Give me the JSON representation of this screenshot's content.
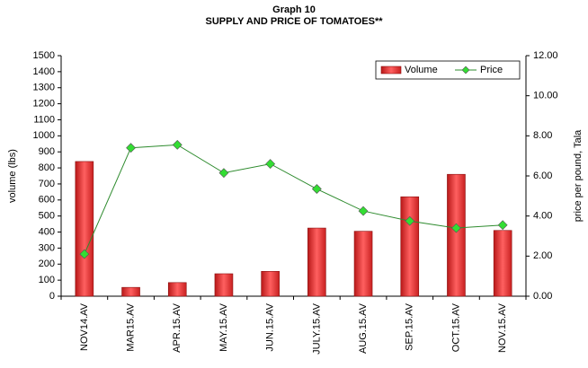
{
  "chart_data": {
    "type": "bar",
    "title": "Graph 10",
    "subtitle": "SUPPLY AND PRICE OF TOMATOES**",
    "y_label": "volume (lbs)",
    "y2_label": "price per pound, Tala",
    "categories": [
      "NOV14.AV",
      "MAR15.AV",
      "APR.15.AV",
      "MAY.15.AV",
      "JUN.15.AV",
      "JULY.15.AV",
      "AUG.15.AV",
      "SEP.15.AV",
      "OCT.15.AV",
      "NOV.15.AV"
    ],
    "series": [
      {
        "name": "Volume",
        "type": "bar",
        "color": "#e8302f",
        "values": [
          840,
          55,
          85,
          140,
          155,
          425,
          405,
          620,
          760,
          410
        ]
      },
      {
        "name": "Price",
        "type": "line",
        "axis": "y2",
        "color": "#2e8b2e",
        "marker_color": "#33dd33",
        "values": [
          2.1,
          7.4,
          7.55,
          6.15,
          6.6,
          5.35,
          4.25,
          3.75,
          3.4,
          3.55
        ]
      }
    ],
    "ylim": [
      0,
      1500
    ],
    "yticks": [
      0,
      100,
      200,
      300,
      400,
      500,
      600,
      700,
      800,
      900,
      1000,
      1100,
      1200,
      1300,
      1400,
      1500
    ],
    "y2lim": [
      0,
      12
    ],
    "y2ticks": [
      {
        "value": 0,
        "label": "0.00"
      },
      {
        "value": 2,
        "label": "2.00"
      },
      {
        "value": 4,
        "label": "4.00"
      },
      {
        "value": 6,
        "label": "6.00"
      },
      {
        "value": 8,
        "label": "8.00"
      },
      {
        "value": 10,
        "label": "10.00"
      },
      {
        "value": 12,
        "label": "12.00"
      }
    ],
    "grid": false,
    "legend": "upper right"
  }
}
